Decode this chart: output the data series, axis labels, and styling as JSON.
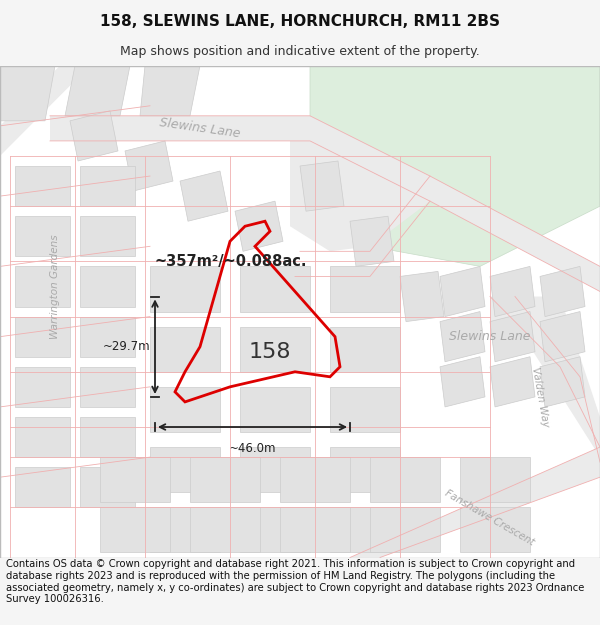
{
  "title_line1": "158, SLEWINS LANE, HORNCHURCH, RM11 2BS",
  "title_line2": "Map shows position and indicative extent of the property.",
  "footer_text": "Contains OS data © Crown copyright and database right 2021. This information is subject to Crown copyright and database rights 2023 and is reproduced with the permission of HM Land Registry. The polygons (including the associated geometry, namely x, y co-ordinates) are subject to Crown copyright and database rights 2023 Ordnance Survey 100026316.",
  "area_label": "~357m²/~0.088ac.",
  "property_number": "158",
  "dim_width": "~46.0m",
  "dim_height": "~29.7m",
  "road_label_top": "Slewins Lane",
  "road_label_right": "Slewins Lane",
  "road_label_left": "Warrington Gardens",
  "road_label_valden": "Valden Way",
  "road_label_fanshawe": "Fanshawe Crescent",
  "bg_color": "#f5f5f5",
  "map_bg": "#ffffff",
  "road_fill": "#ebebeb",
  "green_fill": "#ddeedd",
  "block_fill": "#e2e2e2",
  "block_edge": "#cccccc",
  "road_line_color": "#f0b0b0",
  "property_edge": "#dd0000",
  "dim_color": "#222222",
  "title_fontsize": 11,
  "subtitle_fontsize": 9,
  "footer_fontsize": 7.2,
  "road_label_color": "#aaaaaa",
  "road_label_size": 9
}
